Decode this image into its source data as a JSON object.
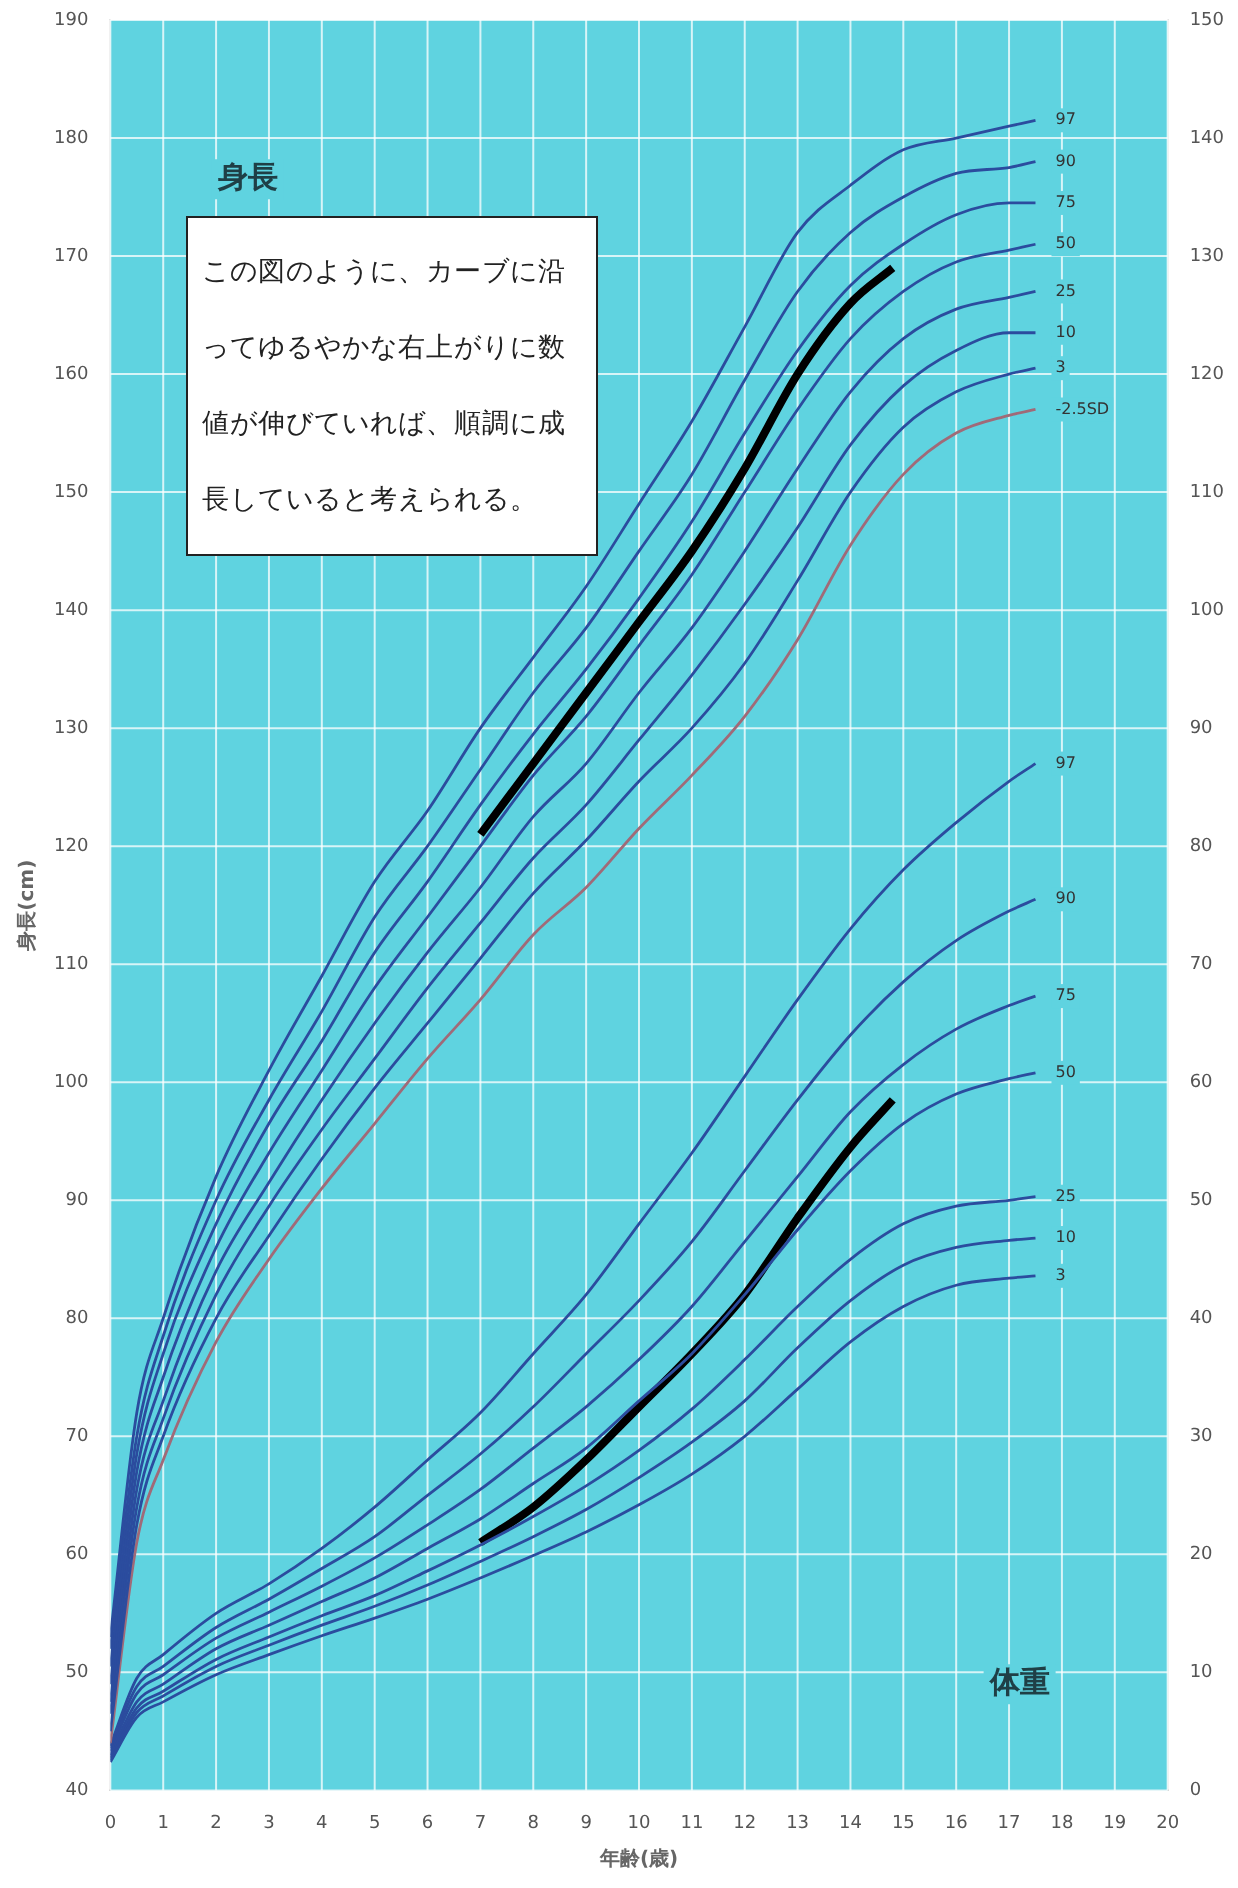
{
  "chart_data": {
    "type": "line",
    "xlabel": "年齢(歳)",
    "ylabel": "身長(cm)",
    "annotations": [
      "身長",
      "体重",
      "この図のように、カーブに沿ってゆるやかな右上がりに数値が伸びていれば、順調に成長していると考えられる。"
    ],
    "x": [
      0,
      0.5,
      1,
      2,
      3,
      4,
      5,
      6,
      7,
      8,
      9,
      10,
      11,
      12,
      13,
      14,
      15,
      16,
      17,
      17.5
    ],
    "series": [
      {
        "name": "97",
        "color": "#2b4c9e",
        "values": [
          53,
          72,
          80,
          92,
          101,
          109,
          117,
          123,
          130,
          136,
          142,
          149,
          156,
          164,
          172,
          176,
          179,
          180,
          181,
          181.5
        ]
      },
      {
        "name": "90",
        "color": "#2b4c9e",
        "values": [
          52,
          70,
          78.5,
          90,
          98.5,
          106,
          114,
          120,
          126.5,
          133,
          138.5,
          145,
          151.5,
          159.5,
          167,
          172,
          175,
          177,
          177.5,
          178
        ]
      },
      {
        "name": "75",
        "color": "#2b4c9e",
        "values": [
          50.5,
          68.5,
          77,
          88,
          96.5,
          103.5,
          111,
          117,
          123.5,
          129.5,
          135,
          141,
          147.5,
          155,
          162,
          167.5,
          171,
          173.5,
          174.5,
          174.5
        ]
      },
      {
        "name": "50",
        "color": "#2b4c9e",
        "values": [
          49,
          67,
          75,
          86,
          94,
          101,
          108,
          114,
          120,
          126,
          131,
          137,
          143,
          150,
          157,
          163,
          167,
          169.5,
          170.5,
          171
        ]
      },
      {
        "name": "25",
        "color": "#2b4c9e",
        "values": [
          47.5,
          65.5,
          73,
          84,
          91.5,
          98.5,
          105,
          111,
          116.5,
          122.5,
          127,
          133,
          138.5,
          145,
          152,
          158.5,
          163,
          165.5,
          166.5,
          167
        ]
      },
      {
        "name": "10",
        "color": "#2b4c9e",
        "values": [
          46.5,
          64,
          71.5,
          82,
          89.5,
          96,
          102,
          108,
          113.5,
          119,
          123.5,
          129,
          134.5,
          140.5,
          147,
          154,
          159,
          162,
          163.5,
          163.5
        ]
      },
      {
        "name": "3",
        "color": "#2b4c9e",
        "values": [
          45,
          62.5,
          70,
          80,
          87,
          93.5,
          99.5,
          105,
          110.5,
          116,
          120.5,
          125.5,
          130,
          135.5,
          142.5,
          150,
          155.5,
          158.5,
          160,
          160.5
        ]
      },
      {
        "name": "-2.5SD",
        "color": "#a06a78",
        "values": [
          44,
          61,
          68,
          78,
          85,
          91,
          96.5,
          102,
          107,
          112.5,
          116.5,
          121.5,
          126,
          131,
          137.5,
          145.5,
          151.5,
          155,
          156.5,
          157
        ]
      },
      {
        "color": "#000000",
        "x": [
          7,
          8,
          9,
          10,
          11,
          12,
          13,
          14,
          14.8
        ],
        "values": [
          121,
          127,
          133,
          139,
          145,
          152,
          160,
          166,
          169
        ]
      },
      {
        "name": "97",
        "color": "#2b4c9e",
        "axis": "y2",
        "values": [
          3.8,
          9.5,
          11.5,
          15,
          17.5,
          20.5,
          24,
          28,
          32,
          37,
          42,
          48,
          54,
          60.5,
          67,
          73,
          78,
          82,
          85.5,
          87
        ]
      },
      {
        "name": "90",
        "color": "#2b4c9e",
        "axis": "y2",
        "values": [
          3.6,
          8.8,
          10.5,
          13.8,
          16.2,
          18.8,
          21.5,
          25,
          28.5,
          32.5,
          37,
          41.5,
          46.5,
          52.5,
          58.5,
          64,
          68.5,
          72,
          74.5,
          75.5
        ]
      },
      {
        "name": "75",
        "color": "#2b4c9e",
        "axis": "y2",
        "values": [
          3.3,
          8.2,
          9.8,
          12.9,
          15.1,
          17.3,
          19.7,
          22.5,
          25.5,
          29,
          32.5,
          36.5,
          41,
          46.5,
          52,
          57.5,
          61.5,
          64.5,
          66.5,
          67.3
        ]
      },
      {
        "name": "50",
        "color": "#2b4c9e",
        "axis": "y2",
        "values": [
          3,
          7.5,
          9,
          12,
          14,
          16,
          18,
          20.5,
          23,
          26,
          29,
          33,
          37,
          42,
          47.5,
          52.5,
          56.5,
          59,
          60.3,
          60.8
        ]
      },
      {
        "name": "25",
        "color": "#2b4c9e",
        "axis": "y2",
        "values": [
          2.8,
          7,
          8.4,
          11.1,
          13,
          14.8,
          16.5,
          18.6,
          20.8,
          23.2,
          25.8,
          28.8,
          32.3,
          36.5,
          41,
          45,
          48,
          49.5,
          50,
          50.3
        ]
      },
      {
        "name": "10",
        "color": "#2b4c9e",
        "axis": "y2",
        "values": [
          2.6,
          6.6,
          8,
          10.5,
          12.3,
          14,
          15.6,
          17.4,
          19.4,
          21.5,
          23.8,
          26.5,
          29.5,
          33,
          37.5,
          41.5,
          44.5,
          46,
          46.6,
          46.8
        ]
      },
      {
        "name": "3",
        "color": "#2b4c9e",
        "axis": "y2",
        "values": [
          2.4,
          6.2,
          7.5,
          9.8,
          11.5,
          13.1,
          14.6,
          16.2,
          18,
          19.9,
          21.9,
          24.2,
          26.8,
          30,
          34,
          38,
          41,
          42.8,
          43.4,
          43.6
        ]
      },
      {
        "color": "#000000",
        "axis": "y2",
        "x": [
          7,
          8,
          9,
          10,
          11,
          12,
          13,
          14,
          14.8
        ],
        "values": [
          21,
          24,
          28,
          32.5,
          37,
          42,
          48.5,
          54.5,
          58.5
        ]
      }
    ],
    "xlim": [
      0,
      20
    ],
    "xticks": [
      0,
      1,
      2,
      3,
      4,
      5,
      6,
      7,
      8,
      9,
      10,
      11,
      12,
      13,
      14,
      15,
      16,
      17,
      18,
      19,
      20
    ],
    "ylim": [
      40,
      190
    ],
    "yticks": [
      40,
      50,
      60,
      70,
      80,
      90,
      100,
      110,
      120,
      130,
      140,
      150,
      160,
      170,
      180,
      190
    ],
    "y2lim": [
      0,
      150
    ],
    "y2ticks": [
      0,
      10,
      20,
      30,
      40,
      50,
      60,
      70,
      80,
      90,
      100,
      110,
      120,
      130,
      140,
      150
    ],
    "grid": true,
    "legend": false,
    "marker": "none"
  }
}
